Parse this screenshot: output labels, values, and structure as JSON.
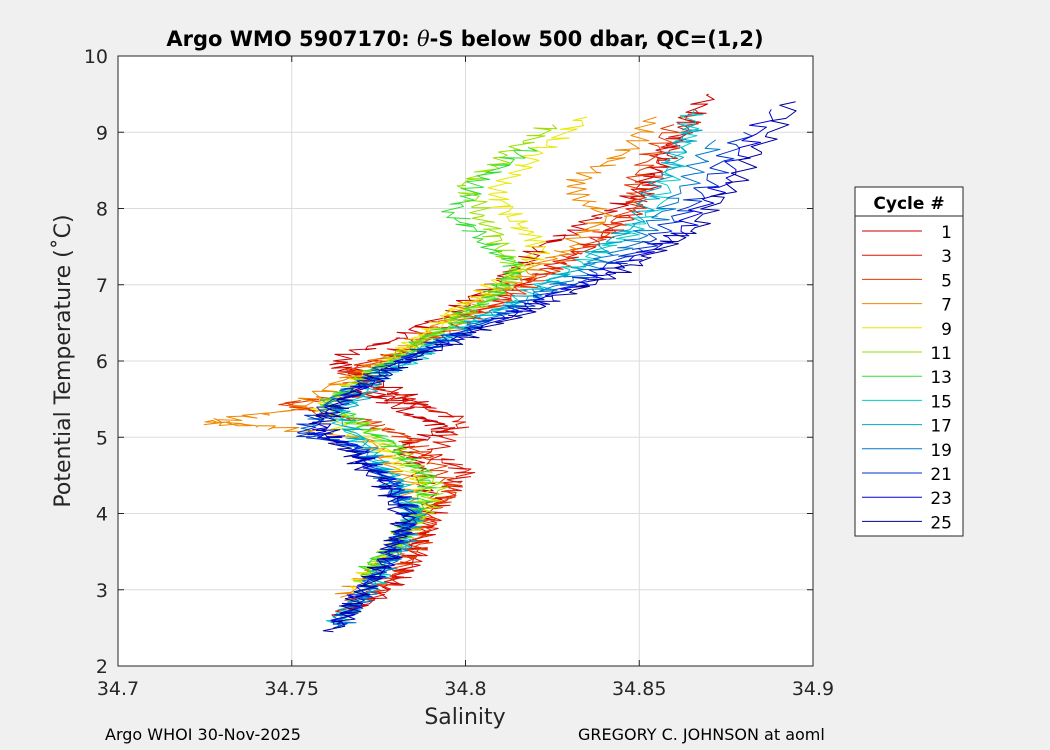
{
  "chart_data": {
    "type": "line",
    "title": "Argo WMO 5907170: θ-S below 500 dbar,  QC=(1,2)",
    "title_parts": {
      "prefix": "Argo WMO 5907170: ",
      "theta": "θ",
      "suffix": "-S below 500 dbar,  QC=(1,2)"
    },
    "xlabel": "Salinity",
    "ylabel": "Potential Temperature (˚C)",
    "xlim": [
      34.7,
      34.9
    ],
    "ylim": [
      2,
      10
    ],
    "xticks": [
      34.7,
      34.75,
      34.8,
      34.85,
      34.9
    ],
    "xtick_labels": [
      "34.7",
      "34.75",
      "34.8",
      "34.85",
      "34.9"
    ],
    "yticks": [
      2,
      3,
      4,
      5,
      6,
      7,
      8,
      9,
      10
    ],
    "ytick_labels": [
      "2",
      "3",
      "4",
      "5",
      "6",
      "7",
      "8",
      "9",
      "10"
    ],
    "grid": true,
    "legend": {
      "title": "Cycle #",
      "position": "right",
      "entries": [
        "1",
        "3",
        "5",
        "7",
        "9",
        "11",
        "13",
        "15",
        "17",
        "19",
        "21",
        "23",
        "25"
      ]
    },
    "series": [
      {
        "name": "1",
        "color": "#cc0000",
        "x": [
          34.762,
          34.778,
          34.785,
          34.787,
          34.79,
          34.786,
          34.782,
          34.795,
          34.785,
          34.77,
          34.79,
          34.77,
          34.762,
          34.78,
          34.795,
          34.805,
          34.815,
          34.822,
          34.835,
          34.85,
          34.855,
          34.862,
          34.87
        ],
        "y": [
          2.6,
          3.0,
          3.4,
          3.8,
          4.2,
          4.6,
          4.9,
          5.1,
          5.3,
          5.6,
          5.4,
          5.8,
          6.0,
          6.3,
          6.6,
          6.9,
          7.2,
          7.5,
          7.8,
          8.2,
          8.6,
          9.0,
          9.5
        ]
      },
      {
        "name": "3",
        "color": "#dd1100",
        "x": [
          34.765,
          34.78,
          34.786,
          34.79,
          34.795,
          34.8,
          34.79,
          34.8,
          34.785,
          34.772,
          34.768,
          34.784,
          34.797,
          34.81,
          34.82,
          34.832,
          34.845,
          34.852,
          34.858,
          34.866
        ],
        "y": [
          2.7,
          3.1,
          3.5,
          3.9,
          4.3,
          4.55,
          4.8,
          5.2,
          5.45,
          5.7,
          5.9,
          6.2,
          6.5,
          6.8,
          7.1,
          7.4,
          7.8,
          8.2,
          8.7,
          9.3
        ]
      },
      {
        "name": "5",
        "color": "#e53a00",
        "x": [
          34.766,
          34.779,
          34.787,
          34.789,
          34.797,
          34.79,
          34.783,
          34.772,
          34.755,
          34.748,
          34.77,
          34.766,
          34.785,
          34.8,
          34.813,
          34.825,
          34.838,
          34.848,
          34.85,
          34.86
        ],
        "y": [
          2.8,
          3.2,
          3.6,
          4.0,
          4.3,
          4.7,
          5.0,
          5.2,
          5.35,
          5.45,
          5.55,
          5.85,
          6.15,
          6.5,
          6.85,
          7.2,
          7.6,
          8.0,
          8.5,
          9.1
        ]
      },
      {
        "name": "7",
        "color": "#f08800",
        "x": [
          34.764,
          34.775,
          34.784,
          34.786,
          34.78,
          34.77,
          34.74,
          34.725,
          34.75,
          34.765,
          34.78,
          34.792,
          34.805,
          34.818,
          34.83,
          34.84,
          34.83,
          34.845,
          34.855
        ],
        "y": [
          2.9,
          3.3,
          3.7,
          4.1,
          4.6,
          5.0,
          5.15,
          5.2,
          5.35,
          5.75,
          6.1,
          6.45,
          6.8,
          7.15,
          7.5,
          7.9,
          8.3,
          8.7,
          9.2
        ]
      },
      {
        "name": "9",
        "color": "#e8e800",
        "x": [
          34.768,
          34.776,
          34.783,
          34.79,
          34.785,
          34.775,
          34.757,
          34.768,
          34.78,
          34.79,
          34.8,
          34.812,
          34.822,
          34.815,
          34.808,
          34.82,
          34.835
        ],
        "y": [
          3.0,
          3.4,
          3.8,
          4.2,
          4.5,
          4.9,
          5.3,
          5.7,
          6.05,
          6.4,
          6.75,
          7.1,
          7.45,
          7.8,
          8.2,
          8.7,
          9.2
        ]
      },
      {
        "name": "11",
        "color": "#9ae000",
        "x": [
          34.77,
          34.778,
          34.786,
          34.792,
          34.786,
          34.776,
          34.76,
          34.77,
          34.782,
          34.795,
          34.806,
          34.815,
          34.81,
          34.805,
          34.8,
          34.812,
          34.825
        ],
        "y": [
          3.1,
          3.5,
          3.9,
          4.3,
          4.6,
          5.0,
          5.4,
          5.75,
          6.1,
          6.45,
          6.8,
          7.15,
          7.5,
          7.9,
          8.3,
          8.7,
          9.1
        ]
      },
      {
        "name": "13",
        "color": "#33dd33",
        "x": [
          34.77,
          34.78,
          34.785,
          34.79,
          34.782,
          34.772,
          34.76,
          34.772,
          34.784,
          34.796,
          34.808,
          34.815,
          34.805,
          34.796,
          34.805,
          34.818
        ],
        "y": [
          3.2,
          3.6,
          4.0,
          4.4,
          4.8,
          5.1,
          5.45,
          5.8,
          6.15,
          6.5,
          6.85,
          7.2,
          7.6,
          7.95,
          8.4,
          8.8
        ]
      },
      {
        "name": "15",
        "color": "#00cccc",
        "x": [
          34.762,
          34.772,
          34.78,
          34.785,
          34.782,
          34.774,
          34.762,
          34.774,
          34.788,
          34.8,
          34.815,
          34.83,
          34.845,
          34.855,
          34.862,
          34.866
        ],
        "y": [
          2.5,
          3.0,
          3.5,
          3.9,
          4.3,
          4.7,
          5.3,
          5.75,
          6.1,
          6.45,
          6.8,
          7.2,
          7.6,
          8.0,
          8.8,
          9.3
        ]
      },
      {
        "name": "17",
        "color": "#00a6c8",
        "x": [
          34.764,
          34.774,
          34.782,
          34.786,
          34.78,
          34.772,
          34.764,
          34.776,
          34.79,
          34.805,
          34.82,
          34.835,
          34.848,
          34.858,
          34.866
        ],
        "y": [
          2.6,
          3.1,
          3.6,
          4.0,
          4.4,
          4.8,
          5.3,
          5.8,
          6.2,
          6.55,
          6.9,
          7.3,
          7.8,
          8.5,
          9.1
        ]
      },
      {
        "name": "19",
        "color": "#0077cc",
        "x": [
          34.764,
          34.772,
          34.78,
          34.784,
          34.778,
          34.77,
          34.755,
          34.766,
          34.782,
          34.8,
          34.818,
          34.835,
          34.85,
          34.862,
          34.872
        ],
        "y": [
          2.5,
          3.0,
          3.5,
          4.0,
          4.4,
          4.8,
          5.1,
          5.6,
          6.0,
          6.4,
          6.8,
          7.2,
          7.6,
          8.2,
          8.9
        ]
      },
      {
        "name": "21",
        "color": "#0033cc",
        "x": [
          34.762,
          34.771,
          34.779,
          34.785,
          34.776,
          34.768,
          34.752,
          34.764,
          34.78,
          34.8,
          34.82,
          34.84,
          34.855,
          34.868,
          34.88
        ],
        "y": [
          2.5,
          3.0,
          3.5,
          4.0,
          4.5,
          4.9,
          5.05,
          5.55,
          6.0,
          6.4,
          6.8,
          7.2,
          7.6,
          8.2,
          9.0
        ]
      },
      {
        "name": "23",
        "color": "#0000dd",
        "x": [
          34.763,
          34.772,
          34.78,
          34.784,
          34.776,
          34.766,
          34.756,
          34.768,
          34.784,
          34.805,
          34.825,
          34.845,
          34.862,
          34.875,
          34.888
        ],
        "y": [
          2.55,
          3.05,
          3.55,
          4.05,
          4.5,
          4.9,
          5.1,
          5.6,
          6.05,
          6.45,
          6.85,
          7.25,
          7.7,
          8.4,
          9.3
        ]
      },
      {
        "name": "25",
        "color": "#00009a",
        "x": [
          34.762,
          34.77,
          34.778,
          34.782,
          34.775,
          34.765,
          34.758,
          34.77,
          34.788,
          34.81,
          34.83,
          34.85,
          34.866,
          34.88,
          34.895
        ],
        "y": [
          2.45,
          2.95,
          3.45,
          3.95,
          4.45,
          4.85,
          5.2,
          5.65,
          6.1,
          6.5,
          6.9,
          7.3,
          7.75,
          8.5,
          9.4
        ]
      }
    ]
  },
  "footer": {
    "left": "Argo WHOI 30-Nov-2025",
    "right": "GREGORY C. JOHNSON at aoml"
  }
}
